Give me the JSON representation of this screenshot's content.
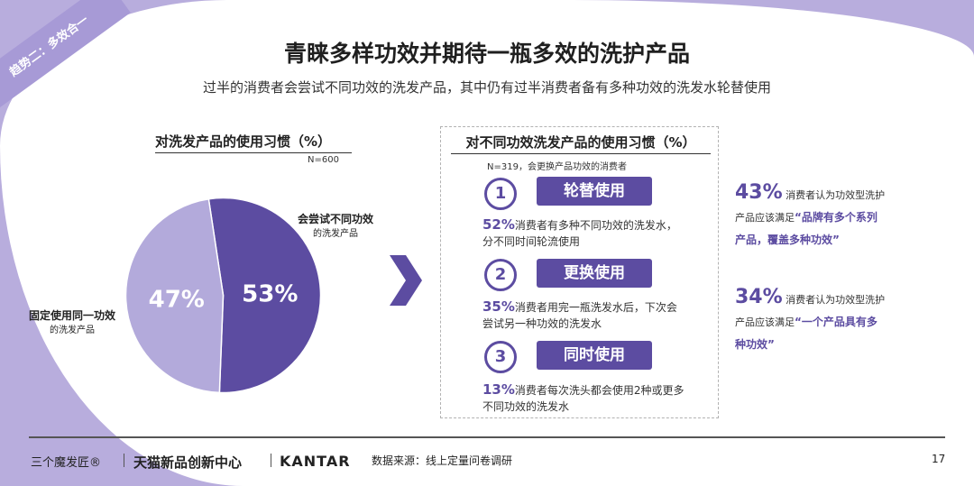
{
  "corner_tag": "趋势二：多效合一",
  "title": "青睐多样功效并期待一瓶多效的洗护产品",
  "subtitle": "过半的消费者会尝试不同功效的洗发产品，其中仍有过半消费者备有多种功效的洗发水轮替使用",
  "pie_section": {
    "heading": "对洗发产品的使用习惯（%）",
    "sample": "N=600",
    "label_try_main": "会尝试不同功效",
    "label_try_sub": "的洗发产品",
    "label_fixed_main": "固定使用同一功效",
    "label_fixed_sub": "的洗发产品"
  },
  "chart_data": {
    "type": "pie",
    "title": "对洗发产品的使用习惯（%）",
    "slices": [
      {
        "label": "会尝试不同功效的洗发产品",
        "value": 53,
        "display": "53%",
        "color": "#5c4ca1"
      },
      {
        "label": "固定使用同一功效的洗发产品",
        "value": 47,
        "display": "47%",
        "color": "#b3aadb"
      }
    ]
  },
  "box_section": {
    "heading": "对不同功效洗发产品的使用习惯（%）",
    "sample": "N=319，会更换产品功效的消费者",
    "items": [
      {
        "num": "1",
        "tag": "轮替使用",
        "pct": "52%",
        "line1": "消费者有多种不同功效的洗发水，",
        "line2": "分不同时间轮流使用"
      },
      {
        "num": "2",
        "tag": "更换使用",
        "pct": "35%",
        "line1": "消费者用完一瓶洗发水后，下次会",
        "line2": "尝试另一种功效的洗发水"
      },
      {
        "num": "3",
        "tag": "同时使用",
        "pct": "13%",
        "line1": "消费者每次洗头都会使用2种或更多",
        "line2": "不同功效的洗发水"
      }
    ]
  },
  "stats": [
    {
      "pct": "43%",
      "text1": "消费者认为功效型洗护",
      "text2": "产品应该满足",
      "highlight": "“品牌有多个系列",
      "highlight2": "产品，覆盖多种功效”"
    },
    {
      "pct": "34%",
      "text1": "消费者认为功效型洗护",
      "text2": "产品应该满足",
      "highlight": "“一个产品具有多",
      "highlight2": "种功效”"
    }
  ],
  "footer": {
    "brand1": "三个魔发匠®",
    "brand2": "天猫新品创新中心",
    "brand3": "KANTAR",
    "source": "数据来源：线上定量问卷调研",
    "page": "17"
  },
  "colors": {
    "accent": "#5c4ca1",
    "light": "#b3aadb",
    "frame": "#b8addd"
  }
}
